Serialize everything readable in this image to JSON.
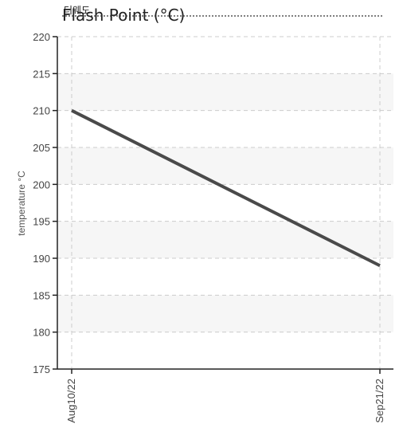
{
  "chart_data": {
    "type": "line",
    "title": "Flash Point (°C)",
    "title_overlay": "더웨도",
    "xlabel": "",
    "ylabel": "temperature °C",
    "x": [
      "Aug10/22",
      "Sep21/22"
    ],
    "series": [
      {
        "values": [
          210,
          189
        ],
        "color": "#4a4a4a"
      }
    ],
    "yticks": [
      175,
      180,
      185,
      190,
      195,
      200,
      205,
      210,
      215,
      220
    ],
    "ylim": [
      175,
      220
    ],
    "grid": true,
    "legend": "none"
  },
  "colors": {
    "line": "#4a4a4a",
    "band": "#f6f6f6",
    "grid": "#cccccc",
    "axis": "#222222"
  }
}
